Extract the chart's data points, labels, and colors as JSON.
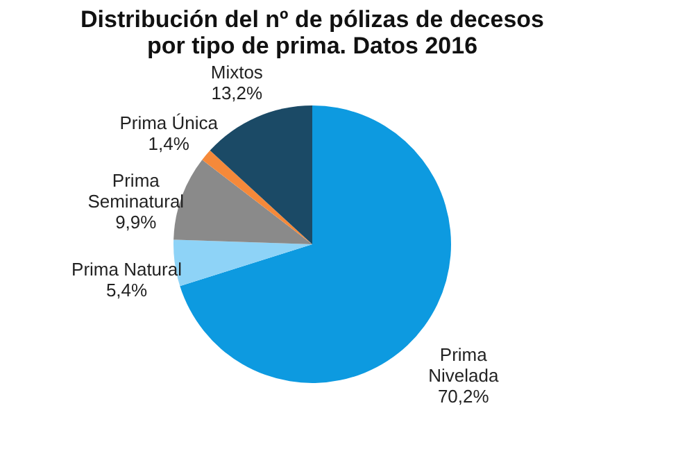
{
  "chart_data": {
    "type": "pie",
    "title": "Distribución  del nº de pólizas de decesos\npor tipo de prima. Datos 2016",
    "categories": [
      "Prima\nNivelada",
      "Prima Natural",
      "Prima\nSeminatural",
      "Prima Única",
      "Mixtos"
    ],
    "values": [
      70.2,
      5.4,
      9.9,
      1.4,
      13.2
    ],
    "value_labels": [
      "70,2%",
      "5,4%",
      "9,9%",
      "1,4%",
      "13,2%"
    ],
    "colors": [
      "#0d9ae0",
      "#8ed3f7",
      "#8a8a8a",
      "#f5893a",
      "#1b4a66"
    ],
    "legend": false
  }
}
